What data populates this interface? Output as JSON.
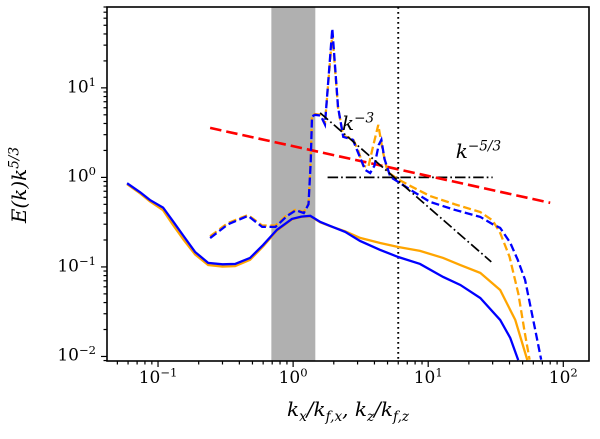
{
  "figure": {
    "background": "#ffffff"
  },
  "chart_data": {
    "type": "line",
    "title": "",
    "xscale": "log",
    "yscale": "log",
    "xlim": [
      0.0419,
      155
    ],
    "ylim": [
      0.0089,
      80
    ],
    "grid": false,
    "legend": "none",
    "ylabel": {
      "main": "E(k)k",
      "exp": "5/3"
    },
    "xlabel_parts": [
      {
        "t": "k"
      },
      {
        "s": "x"
      },
      {
        "t": "/k"
      },
      {
        "s": "f,x"
      },
      {
        "t": ", k"
      },
      {
        "s": "z"
      },
      {
        "t": "/k"
      },
      {
        "s": "f,z"
      }
    ],
    "x_ticks": [
      {
        "base": "10",
        "exp": "−1",
        "value": 0.1
      },
      {
        "base": "10",
        "exp": "0",
        "value": 1
      },
      {
        "base": "10",
        "exp": "1",
        "value": 10
      },
      {
        "base": "10",
        "exp": "2",
        "value": 100
      }
    ],
    "y_ticks": [
      {
        "base": "10",
        "exp": "1",
        "value": 10
      },
      {
        "base": "10",
        "exp": "0",
        "value": 1
      },
      {
        "base": "10",
        "exp": "−1",
        "value": 0.1
      },
      {
        "base": "10",
        "exp": "−2",
        "value": 0.01
      }
    ],
    "band": {
      "x0": 0.69,
      "x1": 1.46,
      "color": "#b0b0b0"
    },
    "vline": {
      "x": 6.0,
      "color": "#000000",
      "style": "dotted"
    },
    "reference_lines": [
      {
        "name": "hline-k-minus-5-3-compensated",
        "color": "#000000",
        "style": "dashdot",
        "x": [
          1.8,
          30
        ],
        "y": [
          1.0,
          1.0
        ]
      },
      {
        "name": "red-k-minus-5-3",
        "color": "#ff0000",
        "style": "dashed-big",
        "x": [
          0.243,
          80
        ],
        "y": [
          3.57,
          0.52
        ]
      },
      {
        "name": "k-minus-3",
        "color": "#000000",
        "style": "dashdot",
        "x": [
          1.585,
          29.3
        ],
        "y": [
          5.26,
          0.114
        ]
      }
    ],
    "series": [
      {
        "name": "solid-orange",
        "color": "#ffa500",
        "style": "solid",
        "width": 2.3,
        "x": [
          0.059,
          0.074,
          0.087,
          0.109,
          0.128,
          0.155,
          0.188,
          0.235,
          0.3,
          0.372,
          0.48,
          0.6,
          0.76,
          0.98,
          1.15,
          1.34,
          1.59,
          1.88,
          2.43,
          3.13,
          4.41,
          6.0,
          8.7,
          12.9,
          17.3,
          24.3,
          34.1,
          44.1,
          54.2
        ],
        "y": [
          0.84,
          0.66,
          0.54,
          0.43,
          0.3,
          0.2,
          0.138,
          0.105,
          0.101,
          0.102,
          0.12,
          0.17,
          0.255,
          0.34,
          0.362,
          0.368,
          0.315,
          0.285,
          0.25,
          0.211,
          0.185,
          0.167,
          0.151,
          0.126,
          0.105,
          0.0857,
          0.0553,
          0.0256,
          0.0091
        ]
      },
      {
        "name": "solid-blue",
        "color": "#0000ff",
        "style": "solid",
        "width": 2.3,
        "x": [
          0.059,
          0.074,
          0.087,
          0.109,
          0.128,
          0.155,
          0.188,
          0.235,
          0.3,
          0.372,
          0.48,
          0.6,
          0.76,
          0.98,
          1.15,
          1.34,
          1.59,
          1.88,
          2.43,
          3.13,
          4.41,
          6.0,
          8.7,
          12.9,
          17.3,
          24.3,
          34.1,
          40.5,
          46.4
        ],
        "y": [
          0.86,
          0.68,
          0.56,
          0.46,
          0.33,
          0.22,
          0.147,
          0.111,
          0.107,
          0.108,
          0.126,
          0.176,
          0.26,
          0.344,
          0.365,
          0.372,
          0.318,
          0.287,
          0.246,
          0.195,
          0.155,
          0.129,
          0.108,
          0.0773,
          0.0629,
          0.045,
          0.0256,
          0.0161,
          0.0091
        ]
      },
      {
        "name": "dashed-orange",
        "color": "#ffa500",
        "style": "dashed",
        "width": 2.3,
        "x": [
          0.243,
          0.33,
          0.464,
          0.59,
          0.74,
          0.9,
          1.05,
          1.2,
          1.3,
          1.35,
          1.38,
          1.45,
          1.6,
          1.72,
          1.95,
          2.15,
          2.35,
          2.77,
          3.03,
          3.3,
          3.6,
          3.9,
          4.27,
          4.6,
          5.0,
          6.0,
          7.4,
          10.3,
          15.8,
          24.3,
          30,
          34.1,
          40,
          46.5,
          52,
          56.3
        ],
        "y": [
          0.22,
          0.31,
          0.38,
          0.29,
          0.29,
          0.38,
          0.44,
          0.41,
          0.51,
          1.6,
          4.9,
          5.1,
          5.0,
          4.0,
          40,
          6.0,
          2.9,
          2.7,
          2.0,
          1.35,
          1.3,
          2.2,
          3.86,
          2.0,
          1.15,
          0.95,
          0.8,
          0.62,
          0.5,
          0.41,
          0.33,
          0.24,
          0.13,
          0.05,
          0.018,
          0.0092
        ]
      },
      {
        "name": "dashed-blue",
        "color": "#0000ff",
        "style": "dashed",
        "width": 2.3,
        "x": [
          0.243,
          0.33,
          0.464,
          0.59,
          0.74,
          0.9,
          1.05,
          1.2,
          1.3,
          1.35,
          1.38,
          1.45,
          1.6,
          1.72,
          1.95,
          2.15,
          2.35,
          2.77,
          3.03,
          3.42,
          3.72,
          4.0,
          4.3,
          4.5,
          4.75,
          5.25,
          6.0,
          7.4,
          10.3,
          15.8,
          24.3,
          30,
          34.1,
          40.5,
          46,
          52.1,
          61.9,
          68.6
        ],
        "y": [
          0.21,
          0.3,
          0.372,
          0.28,
          0.28,
          0.37,
          0.43,
          0.4,
          0.5,
          1.5,
          4.8,
          5.0,
          4.9,
          3.9,
          46,
          6.1,
          2.84,
          2.63,
          1.88,
          1.21,
          1.12,
          1.35,
          2.3,
          2.63,
          1.6,
          1.01,
          0.89,
          0.725,
          0.533,
          0.433,
          0.362,
          0.3,
          0.273,
          0.186,
          0.12,
          0.072,
          0.02,
          0.0092
        ]
      }
    ],
    "annotations": [
      {
        "base": "k",
        "exp": "−3",
        "x": 2.3,
        "y": 3.0
      },
      {
        "base": "k",
        "exp": "−5/3",
        "x": 16.0,
        "y": 1.45
      }
    ]
  }
}
